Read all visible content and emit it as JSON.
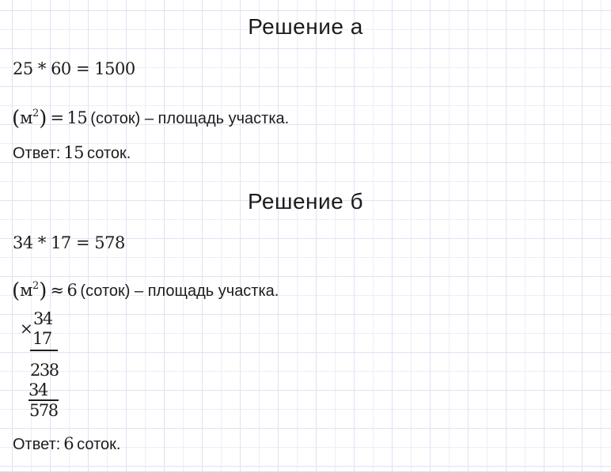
{
  "colors": {
    "text": "#1d1d1d",
    "grid_major_line": "#dde3f3",
    "grid_minor_line": "#eaeef9",
    "page_background": "#ffffff",
    "bottom_edge": "#d7d8dc"
  },
  "solution_a": {
    "heading": "Решение а",
    "equation": "25 * 60 = 1500",
    "unit_line": {
      "open_paren": "(",
      "unit": "м",
      "superscript": "2",
      "close_paren": ")",
      "relation": "=",
      "value": "15",
      "tail": "(соток) – площадь участка."
    },
    "answer": {
      "label": "Ответ:",
      "value": "15",
      "unit": "соток."
    }
  },
  "solution_b": {
    "heading": "Решение б",
    "equation": "34 * 17 = 578",
    "unit_line": {
      "open_paren": "(",
      "unit": "м",
      "superscript": "2",
      "close_paren": ")",
      "relation": "≈",
      "value": "6",
      "tail": "(соток) – площадь участка."
    },
    "long_multiplication": {
      "times_symbol": "×",
      "multiplicand": "34",
      "multiplier": "17",
      "partial_product_1": "238",
      "partial_product_2": "34",
      "product": "578"
    },
    "answer": {
      "label": "Ответ:",
      "value": "6",
      "unit": "соток."
    }
  }
}
